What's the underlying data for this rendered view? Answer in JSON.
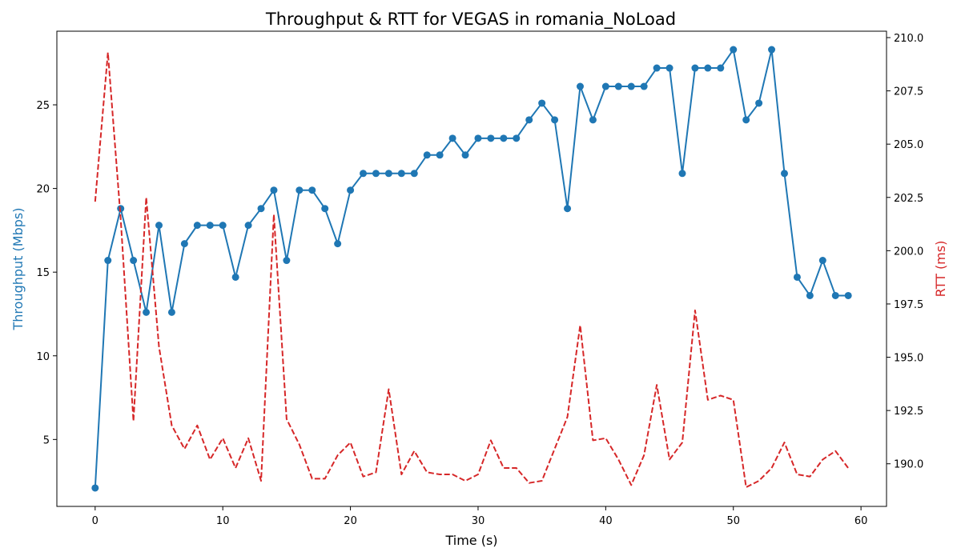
{
  "chart_data": {
    "type": "line",
    "title": "Throughput & RTT for VEGAS in romania_NoLoad",
    "xlabel": "Time (s)",
    "ylabel_left": "Throughput (Mbps)",
    "ylabel_right": "RTT (ms)",
    "xlim": [
      -3,
      62
    ],
    "ylim_left": [
      1.0,
      29.4
    ],
    "ylim_right": [
      188.0,
      210.3
    ],
    "x_ticks": [
      0,
      10,
      20,
      30,
      40,
      50,
      60
    ],
    "y_left_ticks": [
      5,
      10,
      15,
      20,
      25
    ],
    "y_right_ticks": [
      190.0,
      192.5,
      195.0,
      197.5,
      200.0,
      202.5,
      205.0,
      207.5,
      210.0
    ],
    "grid": false,
    "colors": {
      "throughput": "#1f77b4",
      "rtt": "#d62728"
    },
    "series": [
      {
        "axis": "left",
        "style": "solid-markers",
        "x": [
          0,
          1,
          2,
          3,
          4,
          5,
          6,
          7,
          8,
          9,
          10,
          11,
          12,
          13,
          14,
          15,
          16,
          17,
          18,
          19,
          20,
          21,
          22,
          23,
          24,
          25,
          26,
          27,
          28,
          29,
          30,
          31,
          32,
          33,
          34,
          35,
          36,
          37,
          38,
          39,
          40,
          41,
          42,
          43,
          44,
          45,
          46,
          47,
          48,
          49,
          50,
          51,
          52,
          53,
          54,
          55,
          56,
          57,
          58,
          59
        ],
        "values": [
          2.1,
          15.7,
          18.8,
          15.7,
          12.6,
          17.8,
          12.6,
          16.7,
          17.8,
          17.8,
          17.8,
          14.7,
          17.8,
          18.8,
          19.9,
          15.7,
          19.9,
          19.9,
          18.8,
          16.7,
          19.9,
          20.9,
          20.9,
          20.9,
          20.9,
          20.9,
          22.0,
          22.0,
          23.0,
          22.0,
          23.0,
          23.0,
          23.0,
          23.0,
          24.1,
          25.1,
          24.1,
          18.8,
          26.1,
          24.1,
          26.1,
          26.1,
          26.1,
          26.1,
          27.2,
          27.2,
          20.9,
          27.2,
          27.2,
          27.2,
          28.3,
          24.1,
          25.1,
          28.3,
          20.9,
          14.7,
          13.6,
          15.7,
          13.6,
          13.6
        ]
      },
      {
        "axis": "right",
        "style": "dashed",
        "x": [
          0,
          1,
          2,
          3,
          4,
          5,
          6,
          7,
          8,
          9,
          10,
          11,
          12,
          13,
          14,
          15,
          16,
          17,
          18,
          19,
          20,
          21,
          22,
          23,
          24,
          25,
          26,
          27,
          28,
          29,
          30,
          31,
          32,
          33,
          34,
          35,
          36,
          37,
          38,
          39,
          40,
          41,
          42,
          43,
          44,
          45,
          46,
          47,
          48,
          49,
          50,
          51,
          52,
          53,
          54,
          55,
          56,
          57,
          58,
          59
        ],
        "values": [
          202.3,
          209.3,
          201.5,
          192.0,
          202.5,
          195.5,
          191.8,
          190.7,
          191.8,
          190.2,
          191.2,
          189.8,
          191.2,
          189.2,
          201.7,
          192.1,
          190.9,
          189.3,
          189.3,
          190.4,
          191.0,
          189.4,
          189.6,
          193.5,
          189.5,
          190.6,
          189.6,
          189.5,
          189.5,
          189.2,
          189.5,
          191.1,
          189.8,
          189.8,
          189.1,
          189.2,
          190.7,
          192.2,
          196.5,
          191.1,
          191.2,
          190.2,
          189.0,
          190.4,
          193.7,
          190.2,
          191.0,
          197.2,
          193.0,
          193.2,
          193.0,
          188.9,
          189.2,
          189.8,
          191.0,
          189.5,
          189.4,
          190.2,
          190.6,
          189.8
        ]
      }
    ]
  }
}
